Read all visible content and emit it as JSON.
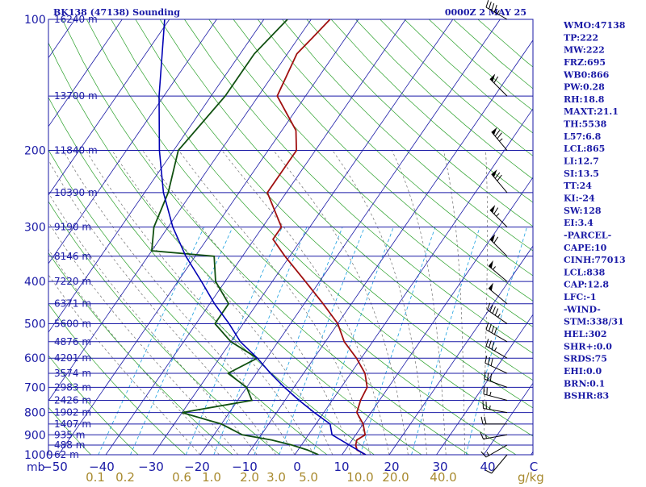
{
  "header": {
    "station": "BK138 (47138) Sounding",
    "time": "0000Z  2 MAY 25"
  },
  "colors": {
    "isobar": "#1a1aa6",
    "isotherm": "#1a1aa6",
    "dry_adiabat": "#2aa02a",
    "moist_adiabat": "#707070",
    "mixing_ratio": "#1aa0e0",
    "temperature": "#a01010",
    "dewpoint": "#105010",
    "parcel": "#0000b4",
    "wind": "#000000"
  },
  "chart_data": {
    "type": "line",
    "chart_kind": "skew-T log-P sounding",
    "pressure_axis": {
      "unit": "mb",
      "scale": "log",
      "range": [
        1000,
        100
      ],
      "tick_labels": [
        "100",
        "200",
        "300",
        "400",
        "500",
        "600",
        "700",
        "800",
        "900",
        "1000"
      ]
    },
    "temperature_axis": {
      "unit": "C",
      "range": [
        -50,
        50
      ],
      "tick_labels": [
        "−50",
        "−40",
        "−30",
        "−20",
        "−10",
        "0",
        "10",
        "20",
        "30",
        "40"
      ]
    },
    "mixing_ratio_axis": {
      "unit": "g/kg",
      "tick_labels": [
        "0.1",
        "0.2",
        "0.6",
        "1.0",
        "2.0",
        "3.0",
        "5.0",
        "10.0",
        "20.0",
        "40.0"
      ]
    },
    "height_labels": [
      {
        "p": 100,
        "text": "16240 m"
      },
      {
        "p": 150,
        "text": "13700 m"
      },
      {
        "p": 200,
        "text": "11840 m"
      },
      {
        "p": 250,
        "text": "10390 m"
      },
      {
        "p": 300,
        "text": "9190 m"
      },
      {
        "p": 350,
        "text": "8146 m"
      },
      {
        "p": 400,
        "text": "7220 m"
      },
      {
        "p": 450,
        "text": "6371 m"
      },
      {
        "p": 500,
        "text": "5600 m"
      },
      {
        "p": 550,
        "text": "4876 m"
      },
      {
        "p": 600,
        "text": "4201 m"
      },
      {
        "p": 650,
        "text": "3574 m"
      },
      {
        "p": 700,
        "text": "2983 m"
      },
      {
        "p": 750,
        "text": "2426 m"
      },
      {
        "p": 800,
        "text": "1902 m"
      },
      {
        "p": 850,
        "text": "1407 m"
      },
      {
        "p": 900,
        "text": "935 m"
      },
      {
        "p": 950,
        "text": "488 m"
      },
      {
        "p": 1000,
        "text": "62 m"
      }
    ],
    "series": [
      {
        "key": "temperature",
        "points": [
          [
            1000,
            15
          ],
          [
            975,
            12.5
          ],
          [
            950,
            11.5
          ],
          [
            925,
            11
          ],
          [
            900,
            12
          ],
          [
            850,
            10
          ],
          [
            800,
            7
          ],
          [
            750,
            6
          ],
          [
            700,
            5.5
          ],
          [
            650,
            3
          ],
          [
            600,
            -1
          ],
          [
            550,
            -6
          ],
          [
            500,
            -10
          ],
          [
            450,
            -16
          ],
          [
            400,
            -23
          ],
          [
            350,
            -31
          ],
          [
            320,
            -36
          ],
          [
            300,
            -36
          ],
          [
            250,
            -44
          ],
          [
            200,
            -44
          ],
          [
            180,
            -47
          ],
          [
            150,
            -56
          ],
          [
            120,
            -58
          ],
          [
            110,
            -57
          ],
          [
            100,
            -56
          ]
        ]
      },
      {
        "key": "dewpoint",
        "points": [
          [
            1000,
            5
          ],
          [
            975,
            2
          ],
          [
            950,
            -2
          ],
          [
            925,
            -7
          ],
          [
            900,
            -14
          ],
          [
            850,
            -20
          ],
          [
            800,
            -30
          ],
          [
            750,
            -17
          ],
          [
            700,
            -20
          ],
          [
            650,
            -26
          ],
          [
            600,
            -22
          ],
          [
            550,
            -30
          ],
          [
            500,
            -36
          ],
          [
            450,
            -36
          ],
          [
            400,
            -42
          ],
          [
            350,
            -46
          ],
          [
            340,
            -60
          ],
          [
            300,
            -63
          ],
          [
            250,
            -65
          ],
          [
            200,
            -69
          ],
          [
            150,
            -67
          ],
          [
            120,
            -67
          ],
          [
            100,
            -65
          ]
        ]
      },
      {
        "key": "parcel",
        "points": [
          [
            1000,
            15
          ],
          [
            900,
            5
          ],
          [
            850,
            3
          ],
          [
            800,
            -2
          ],
          [
            750,
            -7
          ],
          [
            700,
            -12
          ],
          [
            650,
            -17
          ],
          [
            600,
            -22
          ],
          [
            550,
            -28
          ],
          [
            500,
            -33
          ],
          [
            450,
            -39
          ],
          [
            400,
            -45
          ],
          [
            350,
            -52
          ],
          [
            300,
            -59
          ],
          [
            250,
            -66
          ],
          [
            200,
            -73
          ],
          [
            150,
            -81
          ],
          [
            100,
            -91
          ]
        ]
      }
    ],
    "wind_barbs": [
      {
        "p": 1000,
        "dir": 220,
        "kt": 10
      },
      {
        "p": 950,
        "dir": 240,
        "kt": 15
      },
      {
        "p": 900,
        "dir": 260,
        "kt": 15
      },
      {
        "p": 850,
        "dir": 270,
        "kt": 20
      },
      {
        "p": 800,
        "dir": 280,
        "kt": 25
      },
      {
        "p": 750,
        "dir": 285,
        "kt": 25
      },
      {
        "p": 700,
        "dir": 290,
        "kt": 30
      },
      {
        "p": 650,
        "dir": 295,
        "kt": 30
      },
      {
        "p": 600,
        "dir": 300,
        "kt": 35
      },
      {
        "p": 550,
        "dir": 300,
        "kt": 40
      },
      {
        "p": 500,
        "dir": 305,
        "kt": 45
      },
      {
        "p": 450,
        "dir": 310,
        "kt": 50
      },
      {
        "p": 400,
        "dir": 310,
        "kt": 55
      },
      {
        "p": 350,
        "dir": 315,
        "kt": 60
      },
      {
        "p": 300,
        "dir": 315,
        "kt": 65
      },
      {
        "p": 250,
        "dir": 320,
        "kt": 70
      },
      {
        "p": 200,
        "dir": 320,
        "kt": 75
      },
      {
        "p": 150,
        "dir": 315,
        "kt": 60
      },
      {
        "p": 100,
        "dir": 300,
        "kt": 45
      }
    ]
  },
  "indices": [
    "WMO:47138",
    "TP:222",
    "MW:222",
    "FRZ:695",
    "WB0:866",
    "PW:0.28",
    "RH:18.8",
    "MAXT:21.1",
    "TH:5538",
    "L57:6.8",
    "LCL:865",
    "LI:12.7",
    "SI:13.5",
    "TT:24",
    "KI:-24",
    "SW:128",
    "EI:3.4",
    "-PARCEL-",
    "CAPE:10",
    "CINH:77013",
    "LCL:838",
    "CAP:12.8",
    "LFC:-1",
    "-WIND-",
    "STM:338/31",
    "HEL:302",
    "SHR+:0.0",
    "SRDS:75",
    "EHI:0.0",
    "BRN:0.1",
    "BSHR:83"
  ],
  "axis_units": {
    "pressure": "mb",
    "temperature": "C",
    "mixing": "g/kg"
  }
}
